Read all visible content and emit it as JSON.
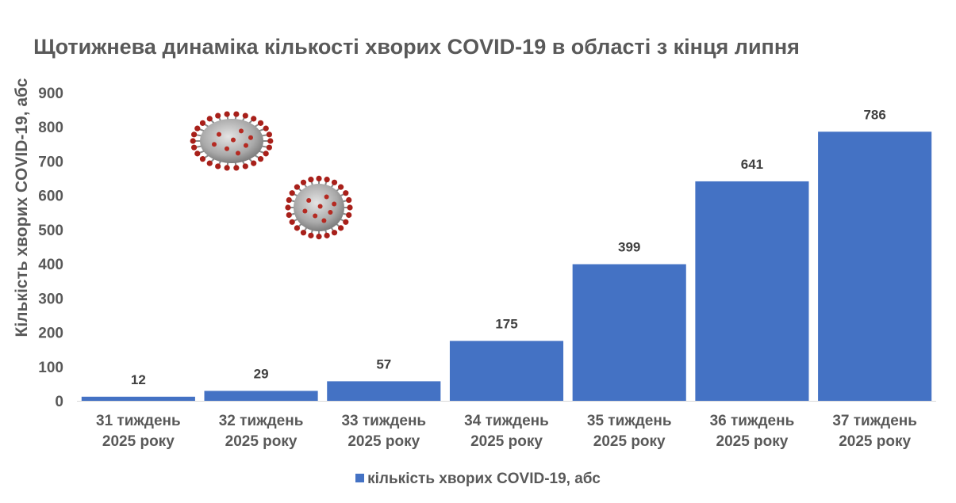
{
  "chart_data": {
    "type": "bar",
    "title": "Щотижнева динаміка кількості хворих COVID-19 в області з кінця липня",
    "xlabel": "",
    "ylabel": "Кількість хворих COVID-19, абс",
    "ylim": [
      0,
      900
    ],
    "y_ticks": [
      "0",
      "100",
      "200",
      "300",
      "400",
      "500",
      "600",
      "700",
      "800",
      "900"
    ],
    "grid": false,
    "legend_position": "bottom",
    "categories": [
      [
        "31 тиждень",
        "2025 року"
      ],
      [
        "32 тиждень",
        "2025 року"
      ],
      [
        "33 тиждень",
        "2025 року"
      ],
      [
        "34 тиждень",
        "2025 року"
      ],
      [
        "35 тиждень",
        "2025 року"
      ],
      [
        "36 тиждень",
        "2025 року"
      ],
      [
        "37 тиждень",
        "2025 року"
      ]
    ],
    "series": [
      {
        "name": "кількість хворих COVID-19, абс",
        "values": [
          12,
          29,
          57,
          175,
          399,
          641,
          786
        ],
        "color": "#4472C4"
      }
    ],
    "decorations": [
      "coronavirus-icon",
      "coronavirus-icon"
    ]
  }
}
